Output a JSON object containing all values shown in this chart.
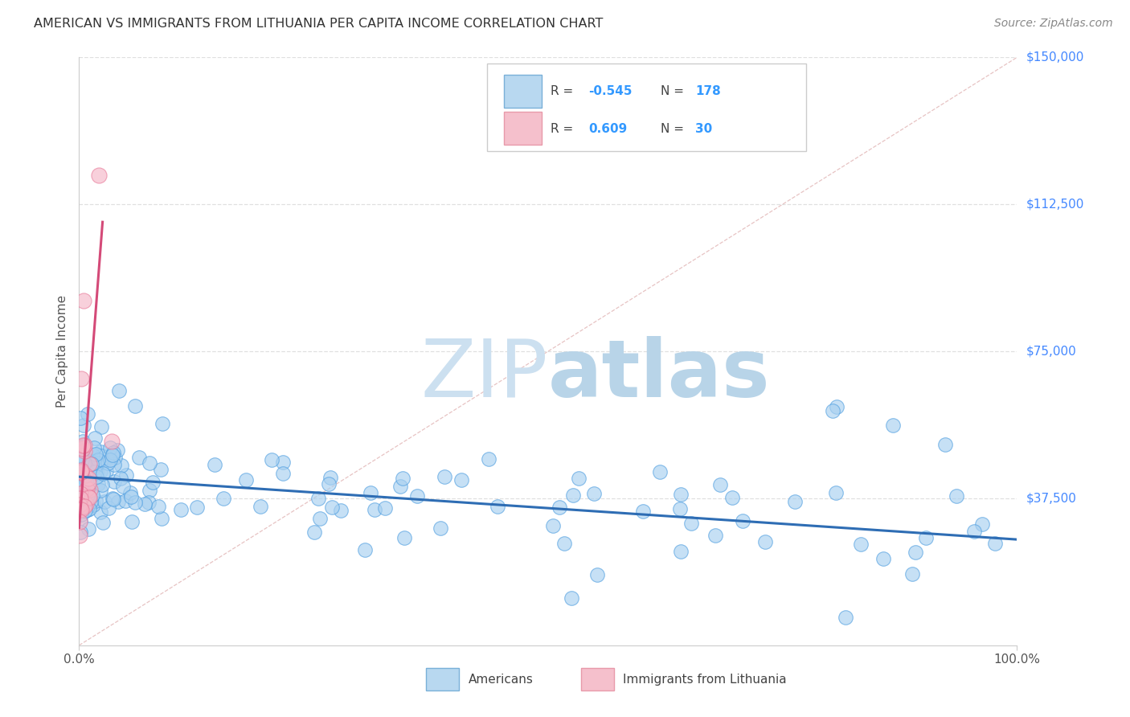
{
  "title": "AMERICAN VS IMMIGRANTS FROM LITHUANIA PER CAPITA INCOME CORRELATION CHART",
  "source": "Source: ZipAtlas.com",
  "ylabel": "Per Capita Income",
  "ylim": [
    0,
    150000
  ],
  "xlim": [
    0,
    1.0
  ],
  "legend_blue_r": "R = -0.545",
  "legend_blue_n": "N = 178",
  "legend_pink_r": "R =  0.609",
  "legend_pink_n": "N =  30",
  "blue_scatter_color": "#a8d0f0",
  "blue_edge_color": "#4d9de0",
  "pink_scatter_color": "#f5b8c8",
  "pink_edge_color": "#e87a9a",
  "blue_line_color": "#2e6db4",
  "pink_line_color": "#d44a78",
  "diag_line_color": "#ddaaaa",
  "grid_color": "#e0e0e0",
  "text_color": "#3399ff",
  "background_color": "#ffffff",
  "right_label_color": "#4488ff",
  "title_color": "#333333",
  "source_color": "#888888",
  "ylabel_color": "#555555",
  "watermark_zip_color": "#cce0f0",
  "watermark_atlas_color": "#b8d4e8"
}
